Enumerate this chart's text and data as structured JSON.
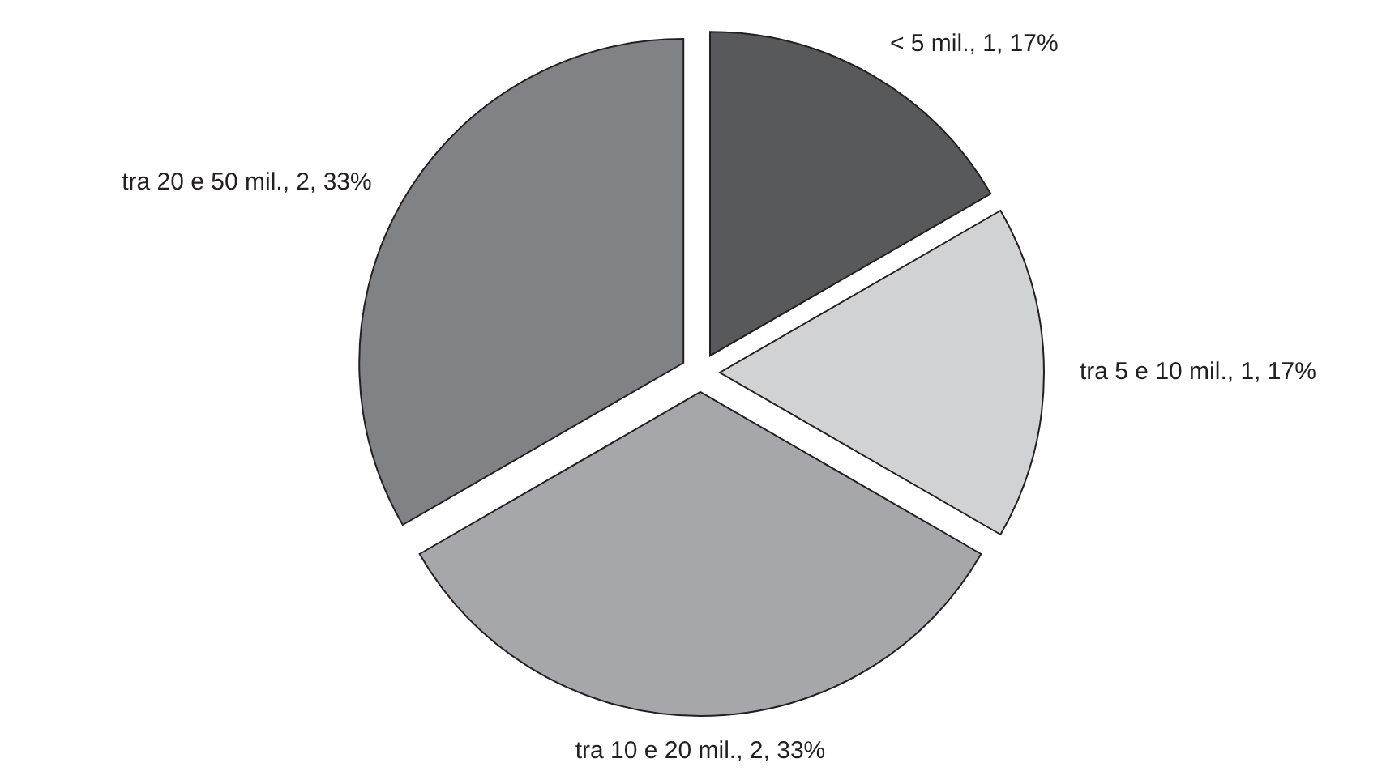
{
  "chart_data": {
    "type": "pie",
    "categories": [
      "< 5 mil.",
      "tra 5 e 10 mil.",
      "tra 10 e 20 mil.",
      "tra 20 e 50 mil."
    ],
    "values": [
      1,
      1,
      2,
      2
    ],
    "colors": [
      "#58595b",
      "#d1d2d4",
      "#a6a7aa",
      "#808285"
    ],
    "value_labels": [
      "1, 17%",
      "1, 17%",
      "2, 33%",
      "2, 33%"
    ]
  }
}
